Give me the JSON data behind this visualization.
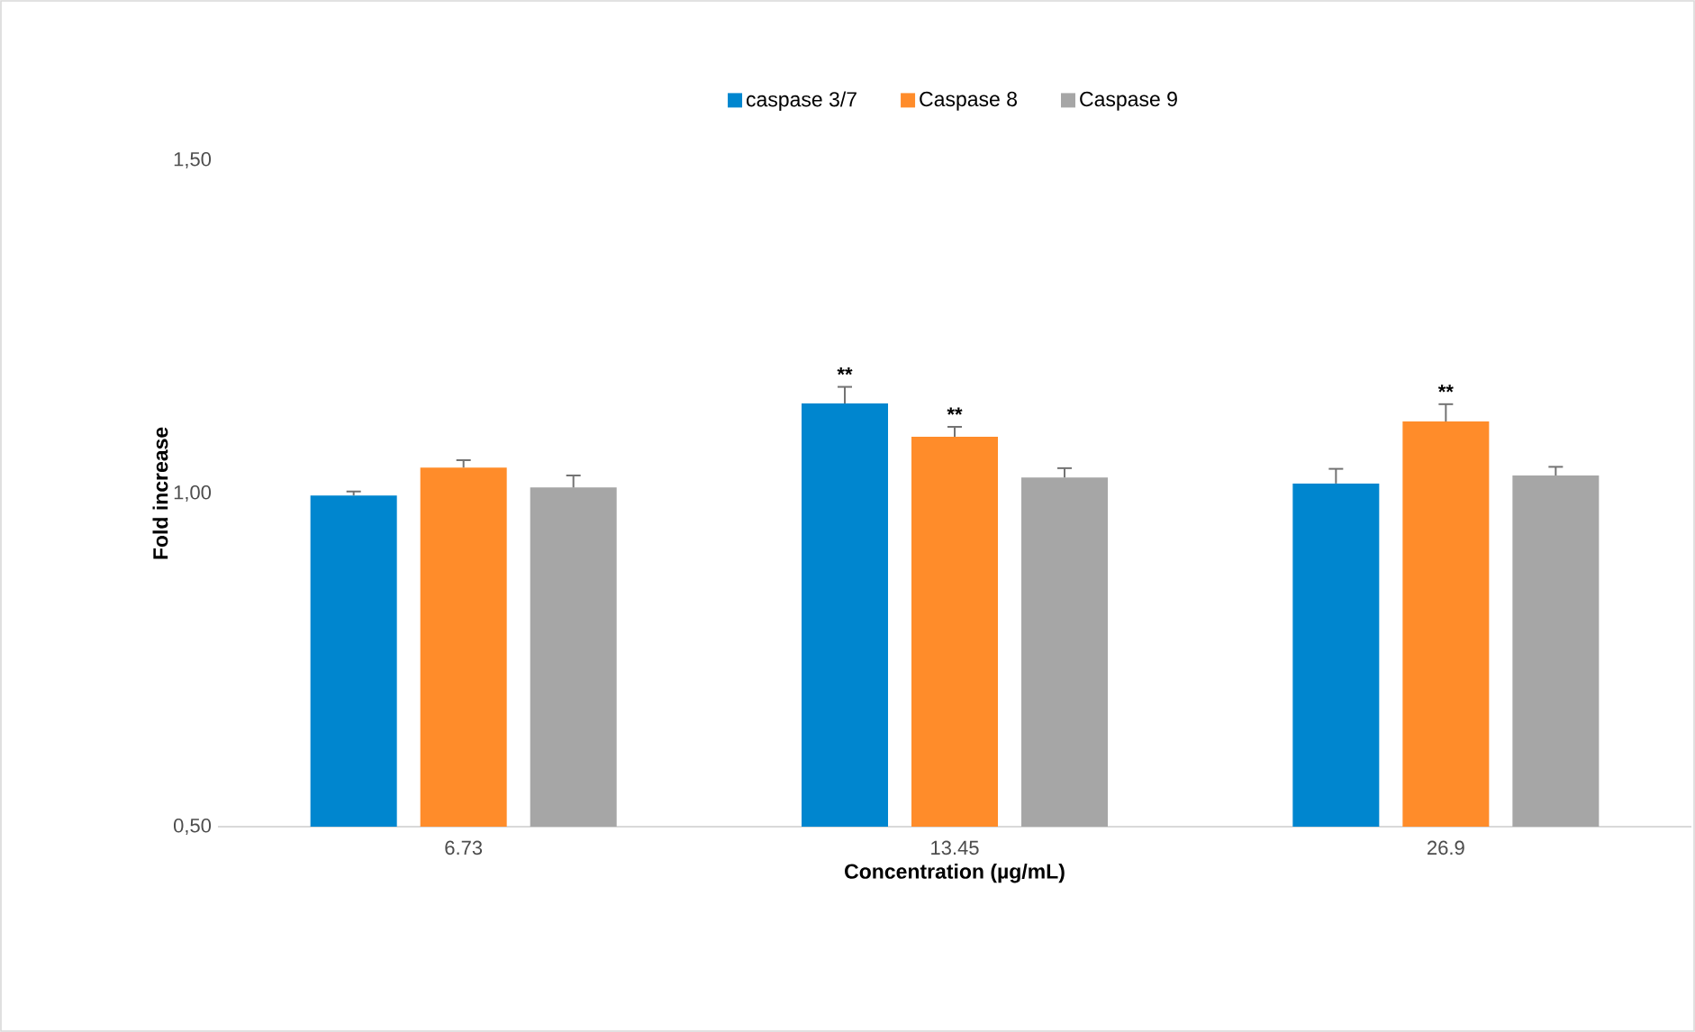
{
  "chart_data": {
    "type": "bar",
    "xlabel": "Concentration (µg/mL)",
    "ylabel": "Fold increase",
    "categories": [
      "6.73",
      "13.45",
      "26.9"
    ],
    "series": [
      {
        "name": "caspase 3/7",
        "color": "#0086cf",
        "values": [
          0.997,
          1.135,
          1.015
        ],
        "errors": [
          0.006,
          0.025,
          0.022
        ]
      },
      {
        "name": "Caspase 8",
        "color": "#ff8c2a",
        "values": [
          1.039,
          1.085,
          1.108
        ],
        "errors": [
          0.011,
          0.015,
          0.026
        ]
      },
      {
        "name": "Caspase 9",
        "color": "#a6a6a6",
        "values": [
          1.009,
          1.024,
          1.027
        ],
        "errors": [
          0.018,
          0.014,
          0.013
        ]
      }
    ],
    "ylim": [
      0.5,
      1.5
    ],
    "yticks": [
      {
        "value": 0.5,
        "label": "0,50"
      },
      {
        "value": 1.0,
        "label": "1,00"
      },
      {
        "value": 1.5,
        "label": "1,50"
      }
    ],
    "grid": false,
    "legend": "top",
    "annotations": [
      "**",
      {
        "text": "**",
        "x": "13.45",
        "y": 1.085
      },
      {
        "text": "**",
        "x": "26.9",
        "y": 1.108
      }
    ]
  }
}
